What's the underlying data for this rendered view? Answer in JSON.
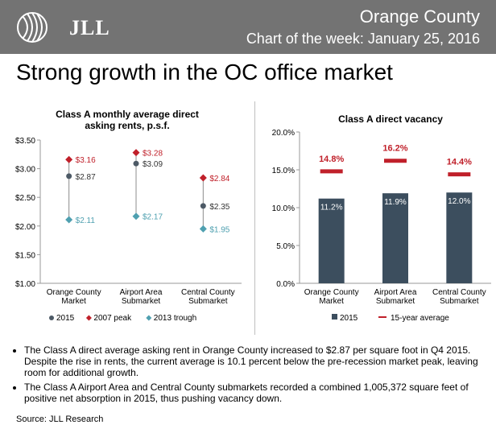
{
  "header": {
    "logo_text": "JLL",
    "region": "Orange County",
    "subtitle": "Chart of the week: January 25, 2016"
  },
  "main_title": "Strong growth in the OC office market",
  "chart_data": [
    {
      "type": "scatter",
      "title": "Class A monthly average direct asking rents, p.s.f.",
      "title_lines": [
        "Class A monthly average direct",
        "asking rents, p.s.f."
      ],
      "categories": [
        [
          "Orange County",
          "Market"
        ],
        [
          "Airport Area",
          "Submarket"
        ],
        [
          "Central County",
          "Submarket"
        ]
      ],
      "ylim": [
        1.0,
        3.5
      ],
      "yticks": [
        1.0,
        1.5,
        2.0,
        2.5,
        3.0,
        3.5
      ],
      "ytick_labels": [
        "$1.00",
        "$1.50",
        "$2.00",
        "$2.50",
        "$3.00",
        "$3.50"
      ],
      "series": [
        {
          "name": "2015",
          "values": [
            2.87,
            3.09,
            2.35
          ],
          "labels": [
            "$2.87",
            "$3.09",
            "$2.35"
          ],
          "color": "#4d5a66",
          "marker": "circle"
        },
        {
          "name": "2007 peak",
          "values": [
            3.16,
            3.28,
            2.84
          ],
          "labels": [
            "$3.16",
            "$3.28",
            "$2.84"
          ],
          "color": "#c0202a",
          "marker": "diamond"
        },
        {
          "name": "2013 trough",
          "values": [
            2.11,
            2.17,
            1.95
          ],
          "labels": [
            "$2.11",
            "$2.17",
            "$1.95"
          ],
          "color": "#4fa0b0",
          "marker": "diamond"
        }
      ],
      "legend": "bottom"
    },
    {
      "type": "bar",
      "title": "Class A direct vacancy",
      "categories": [
        [
          "Orange County",
          "Market"
        ],
        [
          "Airport Area",
          "Submarket"
        ],
        [
          "Central County",
          "Submarket"
        ]
      ],
      "ylim": [
        0,
        20
      ],
      "yticks": [
        0,
        5,
        10,
        15,
        20
      ],
      "ytick_labels": [
        "0.0%",
        "5.0%",
        "10.0%",
        "15.0%",
        "20.0%"
      ],
      "series": [
        {
          "name": "2015",
          "values": [
            11.2,
            11.9,
            12.0
          ],
          "labels": [
            "11.2%",
            "11.9%",
            "12.0%"
          ],
          "color": "#3c4e5e"
        },
        {
          "name": "15-year average",
          "values": [
            14.8,
            16.2,
            14.4
          ],
          "labels": [
            "14.8%",
            "16.2%",
            "14.4%"
          ],
          "color": "#c0202a"
        }
      ],
      "legend": "bottom"
    }
  ],
  "notes": [
    "The Class A direct average asking rent in Orange County increased to $2.87 per square foot in Q4 2015. Despite the rise in rents, the current average is 10.1 percent below the pre-recession market peak, leaving room for additional growth.",
    "The Class A Airport Area and Central County submarkets recorded a combined 1,005,372 square feet of positive net absorption in 2015, thus pushing vacancy down."
  ],
  "source": "Source: JLL Research"
}
